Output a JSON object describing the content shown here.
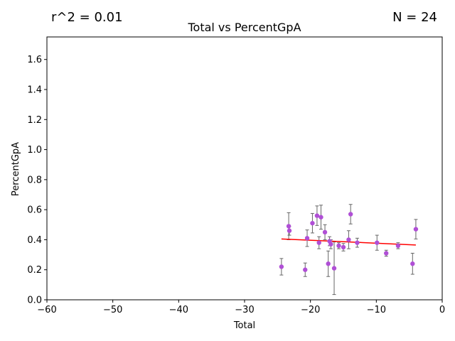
{
  "chart_data": {
    "type": "scatter",
    "title": "Total vs PercentGpA",
    "xlabel": "Total",
    "ylabel": "PercentGpA",
    "annotations": {
      "r2": "r^2 = 0.01",
      "n": "N = 24"
    },
    "xlim": [
      -60,
      0
    ],
    "ylim": [
      0,
      1.75
    ],
    "xticks": [
      -60,
      -50,
      -40,
      -30,
      -20,
      -10,
      0
    ],
    "yticks": [
      0.0,
      0.2,
      0.4,
      0.6,
      0.8,
      1.0,
      1.2,
      1.4,
      1.6
    ],
    "xtick_labels": [
      "−60",
      "−50",
      "−40",
      "−30",
      "−20",
      "−10",
      "0"
    ],
    "ytick_labels": [
      "0.0",
      "0.2",
      "0.4",
      "0.6",
      "0.8",
      "1.0",
      "1.2",
      "1.4",
      "1.6"
    ],
    "grid": false,
    "points": [
      {
        "x": -24.4,
        "y": 0.22,
        "err": 0.055
      },
      {
        "x": -23.3,
        "y": 0.49,
        "err": 0.09
      },
      {
        "x": -23.2,
        "y": 0.46,
        "err": 0.03
      },
      {
        "x": -20.8,
        "y": 0.2,
        "err": 0.045
      },
      {
        "x": -20.5,
        "y": 0.41,
        "err": 0.055
      },
      {
        "x": -19.7,
        "y": 0.51,
        "err": 0.065
      },
      {
        "x": -19.0,
        "y": 0.56,
        "err": 0.065
      },
      {
        "x": -18.7,
        "y": 0.38,
        "err": 0.04
      },
      {
        "x": -18.4,
        "y": 0.55,
        "err": 0.08
      },
      {
        "x": -17.8,
        "y": 0.45,
        "err": 0.05
      },
      {
        "x": -17.3,
        "y": 0.24,
        "err": 0.085
      },
      {
        "x": -17.1,
        "y": 0.39,
        "err": 0.03
      },
      {
        "x": -16.9,
        "y": 0.37,
        "err": 0.03
      },
      {
        "x": -16.4,
        "y": 0.21,
        "err": 0.175
      },
      {
        "x": -15.7,
        "y": 0.36,
        "err": 0.02
      },
      {
        "x": -15.0,
        "y": 0.35,
        "err": 0.025
      },
      {
        "x": -14.2,
        "y": 0.4,
        "err": 0.06
      },
      {
        "x": -13.9,
        "y": 0.57,
        "err": 0.065
      },
      {
        "x": -12.9,
        "y": 0.38,
        "err": 0.03
      },
      {
        "x": -9.9,
        "y": 0.38,
        "err": 0.05
      },
      {
        "x": -8.5,
        "y": 0.31,
        "err": 0.02
      },
      {
        "x": -6.7,
        "y": 0.36,
        "err": 0.02
      },
      {
        "x": -4.5,
        "y": 0.24,
        "err": 0.07
      },
      {
        "x": -4.0,
        "y": 0.47,
        "err": 0.065
      }
    ],
    "fit_line": {
      "x": [
        -24.4,
        -4.0
      ],
      "y": [
        0.405,
        0.365
      ]
    },
    "colors": {
      "point": "#b04fd6",
      "errorbar": "#666666",
      "fit": "#ff0000",
      "axis": "#000000"
    }
  }
}
